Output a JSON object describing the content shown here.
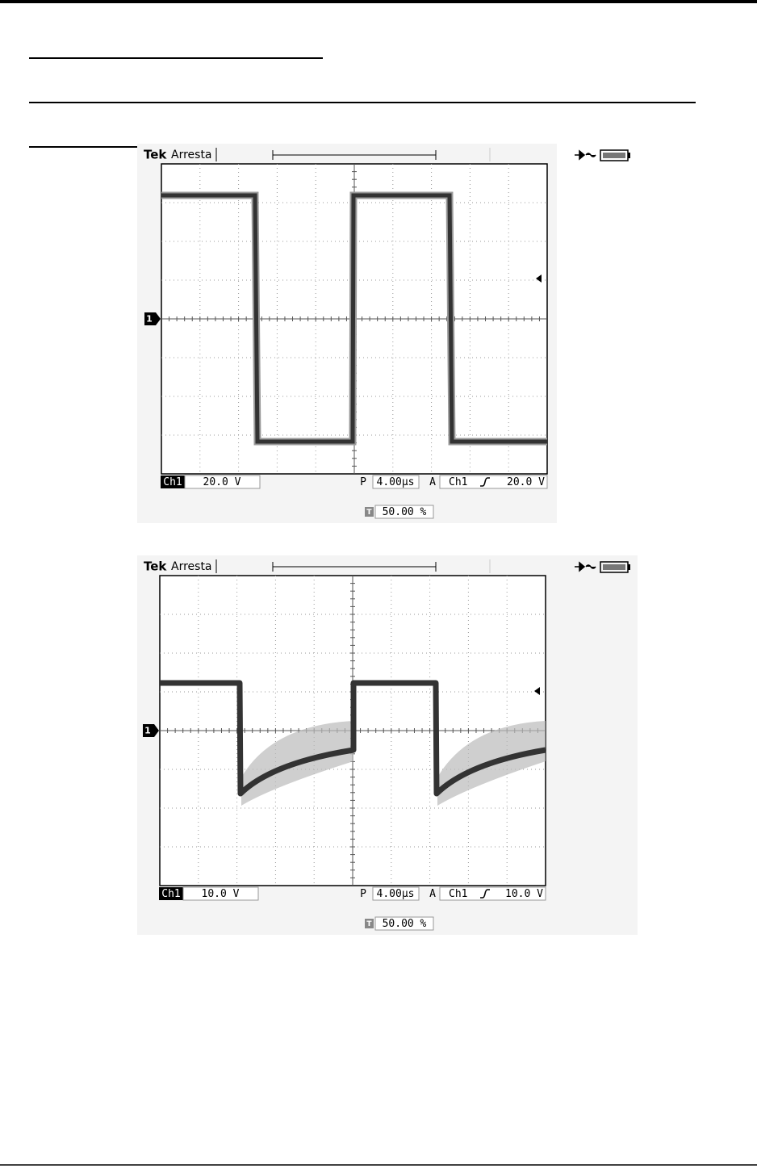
{
  "scopes": [
    {
      "brand": "Tek",
      "status": "Arresta",
      "trigger_marker": "T",
      "channel_marker": "1",
      "channel": "Ch1",
      "volts_per_div": "20.0 V",
      "time_prefix": "P",
      "time_per_div": "4.00µs",
      "trigger_prefix": "A",
      "trigger_channel": "Ch1",
      "trigger_level": "20.0 V",
      "trigger_position_marker": "T",
      "trigger_position": "50.00 %"
    },
    {
      "brand": "Tek",
      "status": "Arresta",
      "trigger_marker": "T",
      "channel_marker": "1",
      "channel": "Ch1",
      "volts_per_div": "10.0 V",
      "time_prefix": "P",
      "time_per_div": "4.00µs",
      "trigger_prefix": "A",
      "trigger_channel": "Ch1",
      "trigger_level": "10.0 V",
      "trigger_position_marker": "T",
      "trigger_position": "50.00 %"
    }
  ]
}
